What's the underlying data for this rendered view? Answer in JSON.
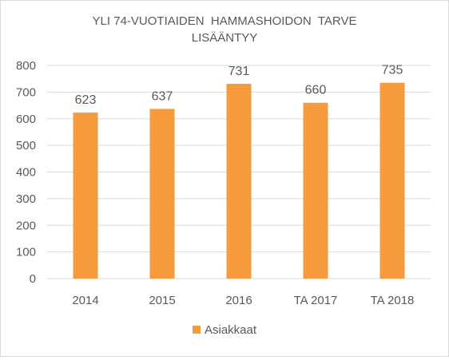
{
  "chart_data": {
    "type": "bar",
    "title_lines": [
      "YLI 74-VUOTIAIDEN  HAMMASHOIDON  TARVE",
      "LISÄÄNTYY"
    ],
    "categories": [
      "2014",
      "2015",
      "2016",
      "TA 2017",
      "TA 2018"
    ],
    "series": [
      {
        "name": "Asiakkaat",
        "values": [
          623,
          637,
          731,
          660,
          735
        ],
        "color": "#f59b3d"
      }
    ],
    "data_labels": [
      "623",
      "637",
      "731",
      "660",
      "735"
    ],
    "ylim": [
      0,
      800
    ],
    "yticks": [
      0,
      100,
      200,
      300,
      400,
      500,
      600,
      700,
      800
    ],
    "ytick_labels": [
      "0",
      "100",
      "200",
      "300",
      "400",
      "500",
      "600",
      "700",
      "800"
    ],
    "grid": true,
    "legend_position": "bottom",
    "colors": {
      "bar": "#f59b3d",
      "grid": "#d9d9d9",
      "text": "#595959",
      "frame": "#d9d9d9"
    }
  }
}
